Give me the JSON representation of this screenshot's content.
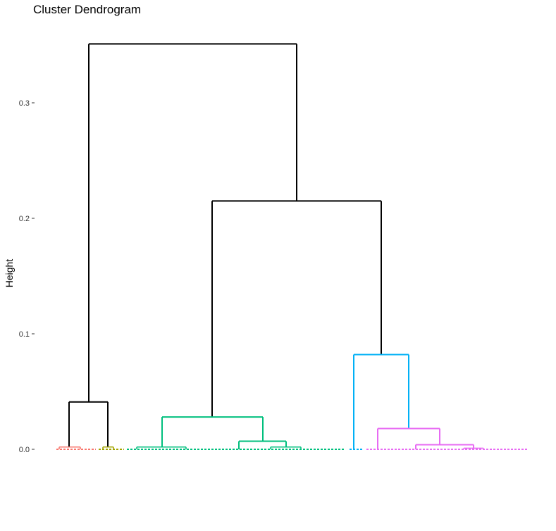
{
  "chart_data": {
    "type": "dendrogram",
    "title": "Cluster Dendrogram",
    "xlabel": "",
    "ylabel": "Height",
    "ylim": [
      0,
      0.35
    ],
    "y_ticks": [
      {
        "value": 0.0,
        "label": "0.0"
      },
      {
        "value": 0.1,
        "label": "0.1"
      },
      {
        "value": 0.2,
        "label": "0.2"
      },
      {
        "value": 0.3,
        "label": "0.3"
      }
    ],
    "leaf_count": 160,
    "grid": false,
    "colors": {
      "root": "#000000",
      "cluster1": "#F8766D",
      "cluster2": "#A3A500",
      "cluster3": "#00BF7D",
      "cluster4": "#00B0F6",
      "cluster5": "#E76BF3"
    },
    "merges": [
      {
        "name": "root",
        "height": 0.351,
        "color": "root",
        "children": [
          "A",
          "BCD"
        ]
      },
      {
        "name": "BCD",
        "height": 0.215,
        "color": "root",
        "children": [
          "B",
          "CD"
        ]
      },
      {
        "name": "CD",
        "height": 0.082,
        "color": "cluster4",
        "children": [
          "C",
          "D"
        ]
      },
      {
        "name": "A",
        "height": 0.041,
        "color": "root",
        "children": [
          "A1",
          "A2"
        ]
      },
      {
        "name": "B",
        "height": 0.028,
        "color": "cluster3",
        "children": [
          "B1",
          "B2"
        ]
      },
      {
        "name": "D",
        "height": 0.018,
        "color": "cluster5",
        "children": [
          "D1",
          "D2"
        ]
      },
      {
        "name": "B2",
        "height": 0.007,
        "color": "cluster3",
        "children": [
          "B2a",
          "B2b"
        ]
      },
      {
        "name": "D2",
        "height": 0.004,
        "color": "cluster5",
        "children": [
          "D2a",
          "D2b"
        ]
      },
      {
        "name": "A1",
        "height": 0.002,
        "color": "cluster1",
        "children": []
      },
      {
        "name": "A2",
        "height": 0.002,
        "color": "cluster2",
        "children": []
      },
      {
        "name": "B1",
        "height": 0.002,
        "color": "cluster3",
        "children": []
      },
      {
        "name": "B2b",
        "height": 0.002,
        "color": "cluster3",
        "children": []
      },
      {
        "name": "D2b",
        "height": 0.001,
        "color": "cluster5",
        "children": []
      }
    ]
  }
}
